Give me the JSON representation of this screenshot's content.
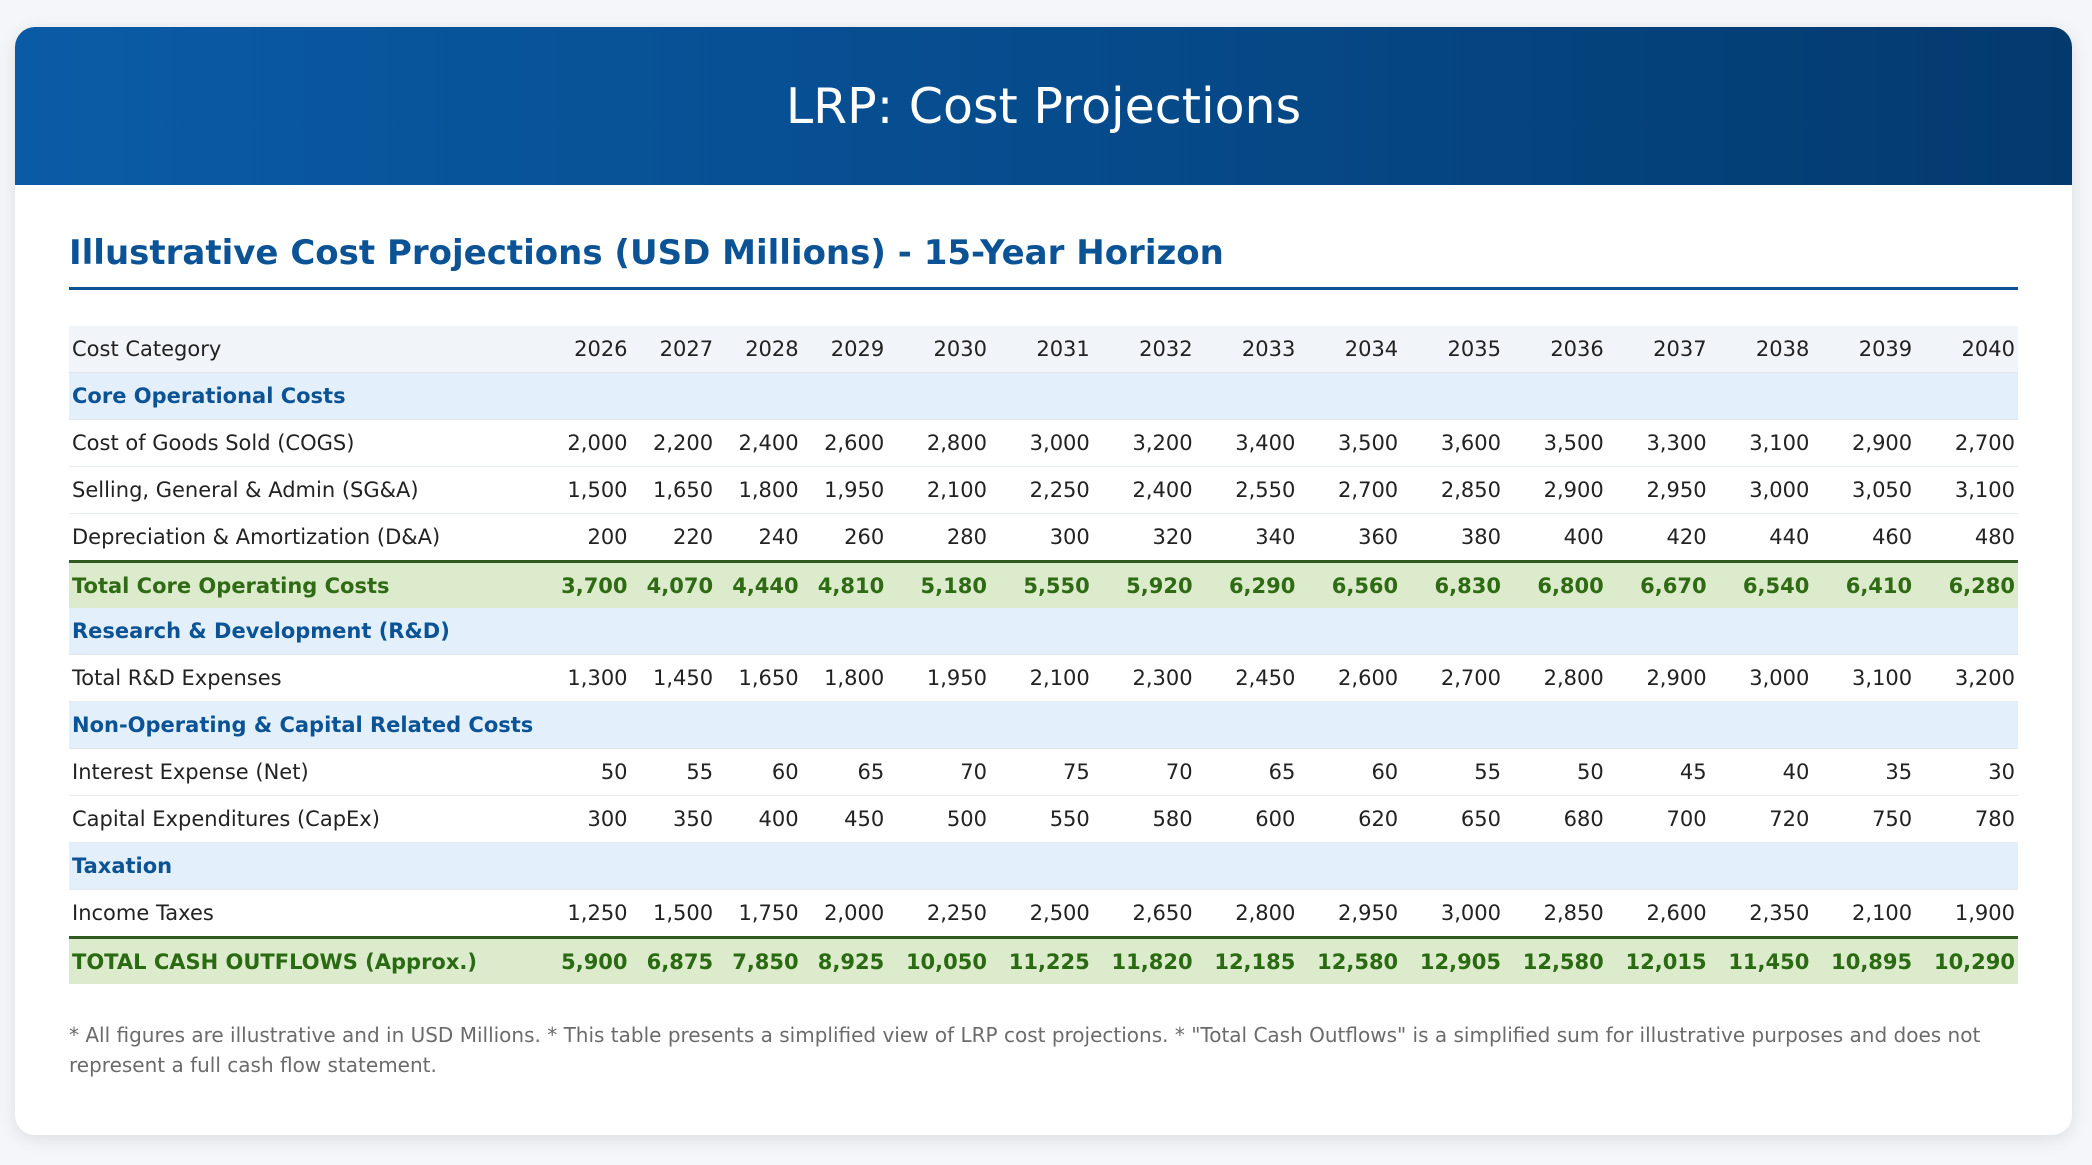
{
  "banner": {
    "title": "LRP: Cost Projections"
  },
  "section_title": "Illustrative Cost Projections (USD Millions) - 15-Year Horizon",
  "table": {
    "header_label": "Cost Category",
    "years": [
      "2026",
      "2027",
      "2028",
      "2029",
      "2030",
      "2031",
      "2032",
      "2033",
      "2034",
      "2035",
      "2036",
      "2037",
      "2038",
      "2039",
      "2040"
    ],
    "rows": [
      {
        "type": "section",
        "label": "Core Operational Costs",
        "values": []
      },
      {
        "type": "line",
        "label": "Cost of Goods Sold (COGS)",
        "values": [
          "2,000",
          "2,200",
          "2,400",
          "2,600",
          "2,800",
          "3,000",
          "3,200",
          "3,400",
          "3,500",
          "3,600",
          "3,500",
          "3,300",
          "3,100",
          "2,900",
          "2,700"
        ]
      },
      {
        "type": "line",
        "label": "Selling, General & Admin (SG&A)",
        "values": [
          "1,500",
          "1,650",
          "1,800",
          "1,950",
          "2,100",
          "2,250",
          "2,400",
          "2,550",
          "2,700",
          "2,850",
          "2,900",
          "2,950",
          "3,000",
          "3,050",
          "3,100"
        ]
      },
      {
        "type": "line",
        "label": "Depreciation & Amortization (D&A)",
        "values": [
          "200",
          "220",
          "240",
          "260",
          "280",
          "300",
          "320",
          "340",
          "360",
          "380",
          "400",
          "420",
          "440",
          "460",
          "480"
        ]
      },
      {
        "type": "total",
        "label": "Total Core Operating Costs",
        "values": [
          "3,700",
          "4,070",
          "4,440",
          "4,810",
          "5,180",
          "5,550",
          "5,920",
          "6,290",
          "6,560",
          "6,830",
          "6,800",
          "6,670",
          "6,540",
          "6,410",
          "6,280"
        ]
      },
      {
        "type": "section",
        "label": "Research & Development (R&D)",
        "values": []
      },
      {
        "type": "line",
        "label": "Total R&D Expenses",
        "values": [
          "1,300",
          "1,450",
          "1,650",
          "1,800",
          "1,950",
          "2,100",
          "2,300",
          "2,450",
          "2,600",
          "2,700",
          "2,800",
          "2,900",
          "3,000",
          "3,100",
          "3,200"
        ]
      },
      {
        "type": "section",
        "label": "Non-Operating & Capital Related Costs",
        "values": []
      },
      {
        "type": "line",
        "label": "Interest Expense (Net)",
        "values": [
          "50",
          "55",
          "60",
          "65",
          "70",
          "75",
          "70",
          "65",
          "60",
          "55",
          "50",
          "45",
          "40",
          "35",
          "30"
        ]
      },
      {
        "type": "line",
        "label": "Capital Expenditures (CapEx)",
        "values": [
          "300",
          "350",
          "400",
          "450",
          "500",
          "550",
          "580",
          "600",
          "620",
          "650",
          "680",
          "700",
          "720",
          "750",
          "780"
        ]
      },
      {
        "type": "section",
        "label": "Taxation",
        "values": []
      },
      {
        "type": "line",
        "label": "Income Taxes",
        "values": [
          "1,250",
          "1,500",
          "1,750",
          "2,000",
          "2,250",
          "2,500",
          "2,650",
          "2,800",
          "2,950",
          "3,000",
          "2,850",
          "2,600",
          "2,350",
          "2,100",
          "1,900"
        ]
      },
      {
        "type": "total grand",
        "label": "TOTAL CASH OUTFLOWS (Approx.)",
        "values": [
          "5,900",
          "6,875",
          "7,850",
          "8,925",
          "10,050",
          "11,225",
          "11,820",
          "12,185",
          "12,580",
          "12,905",
          "12,580",
          "12,015",
          "11,450",
          "10,895",
          "10,290"
        ]
      }
    ]
  },
  "footnote": "* All figures are illustrative and in USD Millions. * This table presents a simplified view of LRP cost projections. * \"Total Cash Outflows\" is a simplified sum for illustrative purposes and does not represent a full cash flow statement."
}
